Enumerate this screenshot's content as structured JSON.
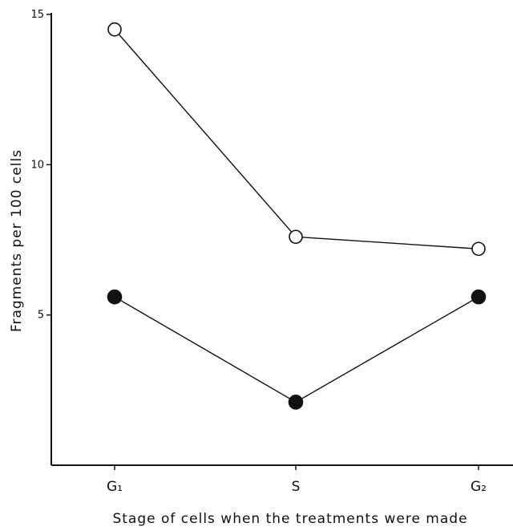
{
  "chart_data": {
    "type": "line",
    "title": "",
    "xlabel": "Stage of cells when the treatments were made",
    "ylabel": "Fragments per 100 cells",
    "categories": [
      "G₁",
      "S",
      "G₂"
    ],
    "yticks": [
      "5",
      "10",
      "15"
    ],
    "ylim": [
      0,
      15
    ],
    "grid": false,
    "series": [
      {
        "marker": "open-circle",
        "values": [
          14.5,
          7.6,
          7.2
        ]
      },
      {
        "marker": "filled-circle",
        "values": [
          5.6,
          2.1,
          5.6
        ]
      }
    ]
  }
}
